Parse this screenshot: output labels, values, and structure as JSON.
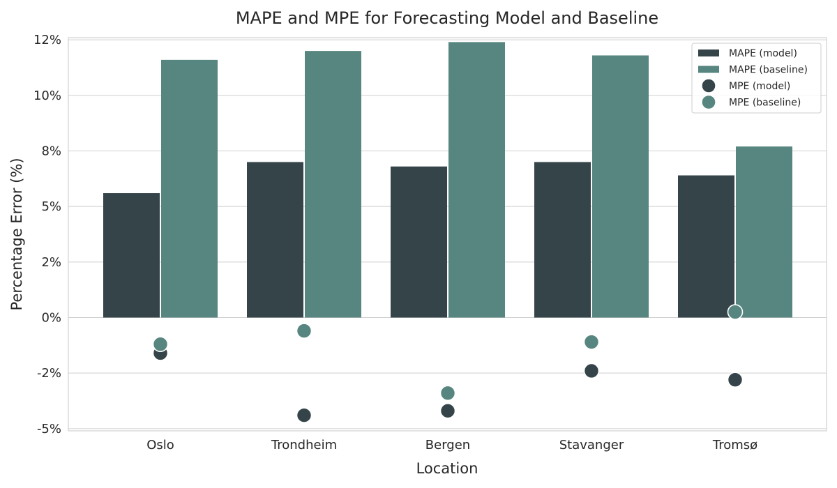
{
  "chart_data": {
    "type": "bar",
    "title": "MAPE and MPE for Forecasting Model and Baseline",
    "xlabel": "Location",
    "ylabel": "Percentage Error (%)",
    "categories": [
      "Oslo",
      "Trondheim",
      "Bergen",
      "Stavanger",
      "Tromsø"
    ],
    "ylim": [
      -5.1,
      12.6
    ],
    "yticks": [
      -5,
      -2.5,
      0,
      2.5,
      5,
      7.5,
      10,
      12.5
    ],
    "ytick_labels": [
      "-5%",
      "-2%",
      "0%",
      "2%",
      "5%",
      "8%",
      "10%",
      "12%"
    ],
    "grid": "horizontal",
    "legend_position": "top-right",
    "bar_series": [
      {
        "name": "MAPE (model)",
        "color": "#344449",
        "values": [
          5.6,
          7.0,
          6.8,
          7.0,
          6.4
        ]
      },
      {
        "name": "MAPE (baseline)",
        "color": "#57857f",
        "values": [
          11.6,
          12.0,
          12.4,
          11.8,
          7.7
        ]
      }
    ],
    "scatter_series": [
      {
        "name": "MPE (model)",
        "color": "#344449",
        "values": [
          -1.6,
          -4.4,
          -4.2,
          -2.4,
          -2.8
        ]
      },
      {
        "name": "MPE (baseline)",
        "color": "#57857f",
        "values": [
          -1.2,
          -0.6,
          -3.4,
          -1.1,
          0.25
        ]
      }
    ],
    "colors": {
      "grid": "#cfcfcf",
      "axes_edge": "#d0d0d0",
      "text": "#262626",
      "legend_border": "#cccccc"
    }
  }
}
